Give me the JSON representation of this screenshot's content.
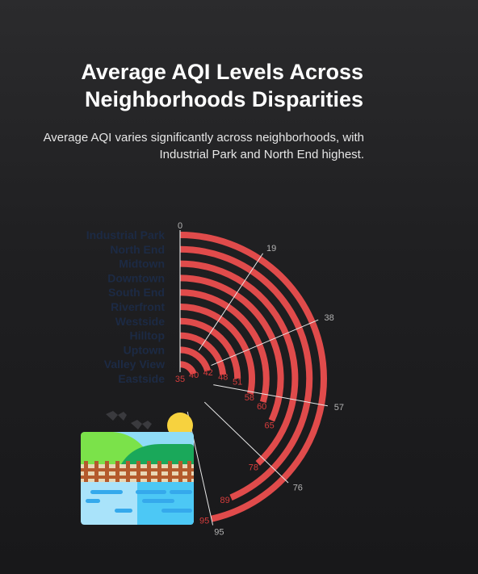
{
  "title": "Average AQI Levels Across Neighborhoods Disparities",
  "subtitle": "Average AQI varies significantly across neighborhoods, with Industrial Park and North End highest.",
  "colors": {
    "bar": "#e04b4b",
    "value_label": "#d63c3c",
    "category_label": "#1c2a44",
    "tick": "#b3b3b3"
  },
  "chart_data": {
    "type": "bar",
    "orientation": "radial",
    "categories": [
      "Industrial Park",
      "North End",
      "Midtown",
      "Downtown",
      "South End",
      "Riverfront",
      "Westside",
      "Hilltop",
      "Uptown",
      "Valley View",
      "Eastside"
    ],
    "values": [
      95,
      89,
      78,
      65,
      60,
      58,
      51,
      48,
      42,
      40,
      35
    ],
    "axis_ticks": [
      0,
      19,
      38,
      57,
      76,
      95
    ],
    "range": [
      0,
      95
    ],
    "title": "Average AQI Levels Across Neighborhoods Disparities",
    "grid": true
  }
}
